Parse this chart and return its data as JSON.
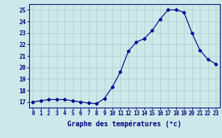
{
  "hours": [
    0,
    1,
    2,
    3,
    4,
    5,
    6,
    7,
    8,
    9,
    10,
    11,
    12,
    13,
    14,
    15,
    16,
    17,
    18,
    19,
    20,
    21,
    22,
    23
  ],
  "temperatures": [
    17.0,
    17.1,
    17.2,
    17.2,
    17.2,
    17.1,
    17.0,
    16.9,
    16.85,
    17.3,
    18.3,
    19.6,
    21.4,
    22.2,
    22.5,
    23.2,
    24.2,
    25.0,
    25.0,
    24.8,
    23.0,
    21.5,
    20.7,
    20.3
  ],
  "xlabel": "Graphe des températures (°c)",
  "ylim": [
    16.5,
    25.5
  ],
  "xlim": [
    -0.5,
    23.5
  ],
  "yticks": [
    17,
    18,
    19,
    20,
    21,
    22,
    23,
    24,
    25
  ],
  "xtick_labels": [
    "0",
    "1",
    "2",
    "3",
    "4",
    "5",
    "6",
    "7",
    "8",
    "9",
    "10",
    "11",
    "12",
    "13",
    "14",
    "15",
    "16",
    "17",
    "18",
    "19",
    "20",
    "21",
    "22",
    "23"
  ],
  "line_color": "#00008B",
  "marker": "D",
  "marker_size": 2.2,
  "bg_color": "#cce8e8",
  "grid_color": "#aacccc",
  "axes_color": "#000080",
  "label_color": "#000080",
  "tick_label_color": "#000080",
  "xlabel_fontsize": 7.0,
  "tick_fontsize": 5.5
}
